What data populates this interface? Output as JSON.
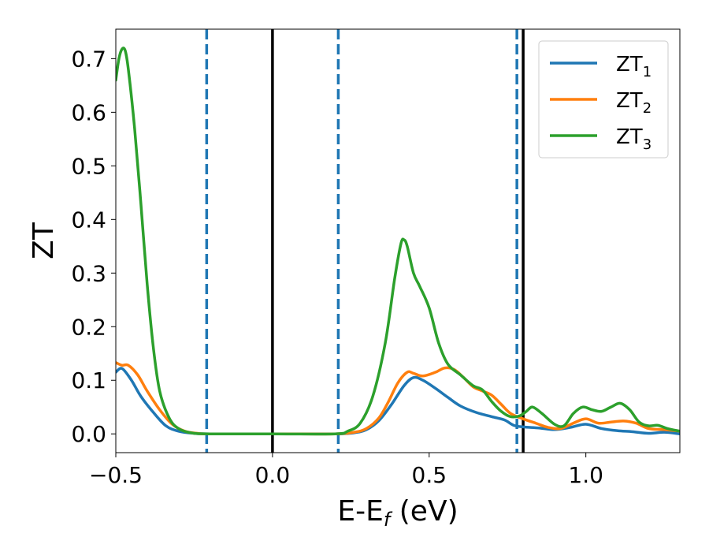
{
  "chart_data": {
    "type": "line",
    "xlabel": "E-E",
    "xlabel_sub": "f",
    "xlabel_suffix": " (eV)",
    "ylabel": "ZT",
    "xlim": [
      -0.5,
      1.3
    ],
    "ylim": [
      -0.035,
      0.755
    ],
    "xticks": [
      -0.5,
      0.0,
      0.5,
      1.0
    ],
    "xtick_labels": [
      "−0.5",
      "0.0",
      "0.5",
      "1.0"
    ],
    "yticks": [
      0.0,
      0.1,
      0.2,
      0.3,
      0.4,
      0.5,
      0.6,
      0.7
    ],
    "ytick_labels": [
      "0.0",
      "0.1",
      "0.2",
      "0.3",
      "0.4",
      "0.5",
      "0.6",
      "0.7"
    ],
    "grid": false,
    "legend_position": "top-right",
    "vlines": [
      {
        "x": -0.21,
        "style": "dashed",
        "color": "#1f77b4"
      },
      {
        "x": 0.0,
        "style": "solid",
        "color": "#000000"
      },
      {
        "x": 0.21,
        "style": "dashed",
        "color": "#1f77b4"
      },
      {
        "x": 0.78,
        "style": "dashed",
        "color": "#1f77b4"
      },
      {
        "x": 0.8,
        "style": "solid",
        "color": "#000000"
      }
    ],
    "series": [
      {
        "name": "ZT",
        "sub": "1",
        "color": "#1f77b4",
        "points": [
          [
            -0.5,
            0.115
          ],
          [
            -0.48,
            0.122
          ],
          [
            -0.45,
            0.1
          ],
          [
            -0.42,
            0.07
          ],
          [
            -0.38,
            0.04
          ],
          [
            -0.34,
            0.015
          ],
          [
            -0.3,
            0.005
          ],
          [
            -0.25,
            0.001
          ],
          [
            -0.2,
            0.0
          ],
          [
            0.0,
            0.0
          ],
          [
            0.2,
            0.0
          ],
          [
            0.26,
            0.002
          ],
          [
            0.3,
            0.008
          ],
          [
            0.34,
            0.025
          ],
          [
            0.38,
            0.055
          ],
          [
            0.42,
            0.09
          ],
          [
            0.45,
            0.105
          ],
          [
            0.48,
            0.1
          ],
          [
            0.52,
            0.085
          ],
          [
            0.56,
            0.068
          ],
          [
            0.6,
            0.052
          ],
          [
            0.65,
            0.04
          ],
          [
            0.7,
            0.032
          ],
          [
            0.74,
            0.026
          ],
          [
            0.77,
            0.016
          ],
          [
            0.8,
            0.013
          ],
          [
            0.85,
            0.011
          ],
          [
            0.9,
            0.008
          ],
          [
            0.95,
            0.012
          ],
          [
            1.0,
            0.018
          ],
          [
            1.05,
            0.01
          ],
          [
            1.1,
            0.006
          ],
          [
            1.15,
            0.004
          ],
          [
            1.2,
            0.001
          ],
          [
            1.25,
            0.003
          ],
          [
            1.3,
            0.0
          ]
        ]
      },
      {
        "name": "ZT",
        "sub": "2",
        "color": "#ff7f0e",
        "points": [
          [
            -0.5,
            0.133
          ],
          [
            -0.48,
            0.128
          ],
          [
            -0.46,
            0.128
          ],
          [
            -0.43,
            0.11
          ],
          [
            -0.4,
            0.08
          ],
          [
            -0.36,
            0.045
          ],
          [
            -0.32,
            0.018
          ],
          [
            -0.28,
            0.005
          ],
          [
            -0.24,
            0.001
          ],
          [
            -0.2,
            0.0
          ],
          [
            0.0,
            0.0
          ],
          [
            0.2,
            0.0
          ],
          [
            0.26,
            0.003
          ],
          [
            0.3,
            0.01
          ],
          [
            0.34,
            0.03
          ],
          [
            0.37,
            0.06
          ],
          [
            0.4,
            0.095
          ],
          [
            0.43,
            0.115
          ],
          [
            0.45,
            0.113
          ],
          [
            0.48,
            0.108
          ],
          [
            0.52,
            0.115
          ],
          [
            0.55,
            0.123
          ],
          [
            0.58,
            0.12
          ],
          [
            0.61,
            0.105
          ],
          [
            0.64,
            0.088
          ],
          [
            0.67,
            0.08
          ],
          [
            0.7,
            0.072
          ],
          [
            0.73,
            0.055
          ],
          [
            0.76,
            0.038
          ],
          [
            0.8,
            0.028
          ],
          [
            0.84,
            0.02
          ],
          [
            0.88,
            0.012
          ],
          [
            0.92,
            0.01
          ],
          [
            0.96,
            0.02
          ],
          [
            1.0,
            0.028
          ],
          [
            1.04,
            0.02
          ],
          [
            1.08,
            0.022
          ],
          [
            1.12,
            0.024
          ],
          [
            1.16,
            0.02
          ],
          [
            1.2,
            0.01
          ],
          [
            1.25,
            0.008
          ],
          [
            1.3,
            0.005
          ]
        ]
      },
      {
        "name": "ZT",
        "sub": "3",
        "color": "#2ca02c",
        "points": [
          [
            -0.5,
            0.66
          ],
          [
            -0.49,
            0.7
          ],
          [
            -0.48,
            0.718
          ],
          [
            -0.47,
            0.715
          ],
          [
            -0.46,
            0.68
          ],
          [
            -0.44,
            0.57
          ],
          [
            -0.42,
            0.43
          ],
          [
            -0.4,
            0.28
          ],
          [
            -0.38,
            0.16
          ],
          [
            -0.36,
            0.08
          ],
          [
            -0.33,
            0.03
          ],
          [
            -0.3,
            0.01
          ],
          [
            -0.26,
            0.002
          ],
          [
            -0.2,
            0.0
          ],
          [
            0.0,
            0.0
          ],
          [
            0.2,
            0.0
          ],
          [
            0.24,
            0.005
          ],
          [
            0.28,
            0.02
          ],
          [
            0.32,
            0.07
          ],
          [
            0.36,
            0.17
          ],
          [
            0.39,
            0.29
          ],
          [
            0.41,
            0.355
          ],
          [
            0.42,
            0.362
          ],
          [
            0.43,
            0.35
          ],
          [
            0.45,
            0.3
          ],
          [
            0.47,
            0.275
          ],
          [
            0.5,
            0.235
          ],
          [
            0.53,
            0.17
          ],
          [
            0.56,
            0.13
          ],
          [
            0.6,
            0.11
          ],
          [
            0.64,
            0.09
          ],
          [
            0.67,
            0.082
          ],
          [
            0.7,
            0.06
          ],
          [
            0.73,
            0.042
          ],
          [
            0.76,
            0.032
          ],
          [
            0.79,
            0.034
          ],
          [
            0.81,
            0.042
          ],
          [
            0.83,
            0.05
          ],
          [
            0.86,
            0.038
          ],
          [
            0.9,
            0.018
          ],
          [
            0.93,
            0.015
          ],
          [
            0.96,
            0.038
          ],
          [
            0.99,
            0.05
          ],
          [
            1.02,
            0.045
          ],
          [
            1.05,
            0.042
          ],
          [
            1.08,
            0.05
          ],
          [
            1.11,
            0.057
          ],
          [
            1.14,
            0.045
          ],
          [
            1.17,
            0.022
          ],
          [
            1.2,
            0.015
          ],
          [
            1.23,
            0.016
          ],
          [
            1.26,
            0.01
          ],
          [
            1.3,
            0.005
          ]
        ]
      }
    ]
  }
}
